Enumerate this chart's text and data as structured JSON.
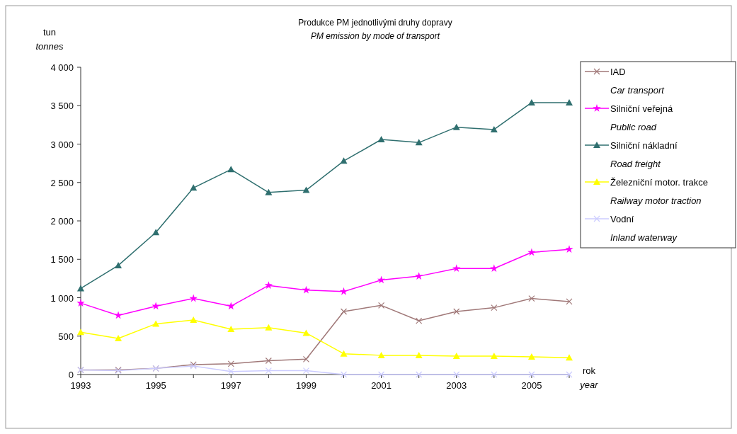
{
  "chart_data": {
    "type": "line",
    "title": "Produkce PM jednotlivými druhy dopravy",
    "subtitle": "PM emission by mode of transport",
    "xlabel": "rok\nyear",
    "ylabel": "tun\ntonnes",
    "x": [
      1993,
      1994,
      1995,
      1996,
      1997,
      1998,
      1999,
      2000,
      2001,
      2002,
      2003,
      2004,
      2005,
      2006
    ],
    "xlim": [
      1993,
      2006
    ],
    "xticks": [
      1993,
      1995,
      1997,
      1999,
      2001,
      2003,
      2005
    ],
    "ylim": [
      0,
      4000
    ],
    "yticks": [
      0,
      500,
      {
        "value": 1000,
        "label": "1 000"
      },
      {
        "value": 1500,
        "label": "1 500"
      },
      {
        "value": 2000,
        "label": "2 000"
      },
      {
        "value": 2500,
        "label": "2 500"
      },
      {
        "value": 3000,
        "label": "3 000"
      },
      {
        "value": 3500,
        "label": "3 500"
      },
      {
        "value": 4000,
        "label": "4 000"
      }
    ],
    "grid": false,
    "legend": "right",
    "series": [
      {
        "name": "IAD\nCar transport",
        "color": "#a07878",
        "marker": "cross",
        "values": [
          60,
          60,
          80,
          130,
          140,
          180,
          200,
          820,
          900,
          700,
          820,
          870,
          990,
          950
        ]
      },
      {
        "name": "Silniční veřejná\nPublic road",
        "color": "#ff00ff",
        "marker": "star",
        "values": [
          930,
          770,
          890,
          990,
          890,
          1160,
          1100,
          1080,
          1230,
          1280,
          1380,
          1380,
          1590,
          1630
        ]
      },
      {
        "name": "Silniční nákladní\nRoad freight",
        "color": "#2f6f6f",
        "marker": "triangle",
        "values": [
          1120,
          1420,
          1850,
          2430,
          2670,
          2370,
          2400,
          2780,
          3060,
          3020,
          3220,
          3190,
          3540,
          3540
        ]
      },
      {
        "name": "Železniční motor. trakce\nRailway motor traction",
        "color": "#ffff00",
        "marker": "triangle",
        "values": [
          550,
          470,
          660,
          710,
          590,
          610,
          540,
          270,
          250,
          250,
          240,
          240,
          230,
          220
        ]
      },
      {
        "name": "Vodní\nInland waterway",
        "color": "#ccccff",
        "marker": "cross",
        "values": [
          60,
          50,
          80,
          110,
          40,
          50,
          50,
          0,
          0,
          0,
          0,
          0,
          0,
          0
        ]
      }
    ]
  }
}
